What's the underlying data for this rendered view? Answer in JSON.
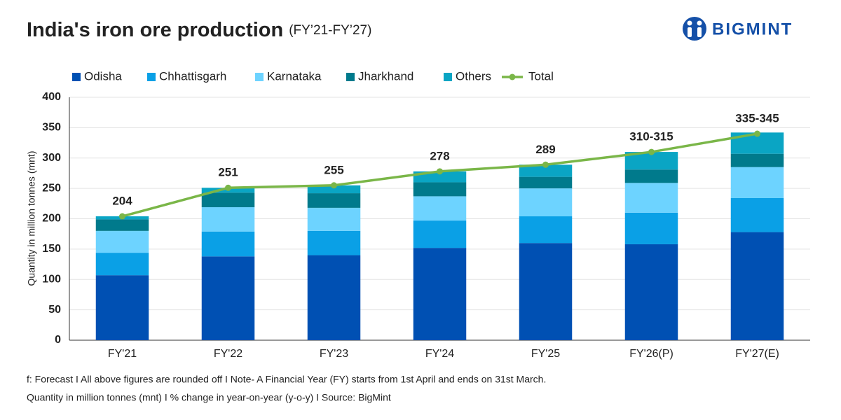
{
  "chart_data": {
    "type": "bar",
    "stacked": true,
    "title": "India's iron ore production",
    "subtitle": "(FY’21-FY’27)",
    "brand": "BIGMINT",
    "ylabel": "Quantity in million tonnes (mnt)",
    "categories": [
      "FY'21",
      "FY'22",
      "FY'23",
      "FY'24",
      "FY'25",
      "FY'26(P)",
      "FY'27(E)"
    ],
    "series": [
      {
        "name": "Odisha",
        "color": "#0050b3",
        "values": [
          107,
          138,
          140,
          152,
          160,
          158,
          178
        ]
      },
      {
        "name": "Chhattisgarh",
        "color": "#0aa0e6",
        "values": [
          37,
          41,
          40,
          45,
          44,
          52,
          56
        ]
      },
      {
        "name": "Karnataka",
        "color": "#6dd3ff",
        "values": [
          36,
          40,
          38,
          40,
          46,
          49,
          51
        ]
      },
      {
        "name": "Jharkhand",
        "color": "#007a8c",
        "values": [
          19,
          24,
          24,
          23,
          19,
          22,
          22
        ]
      },
      {
        "name": "Others",
        "color": "#0aa5c4",
        "values": [
          5,
          8,
          13,
          18,
          20,
          29,
          35
        ]
      },
      {
        "name": "Total",
        "color": "#7ab648",
        "type": "line",
        "values": [
          204,
          251,
          255,
          278,
          289,
          310,
          340
        ],
        "value_labels": [
          "204",
          "251",
          "255",
          "278",
          "289",
          "310-315",
          "335-345"
        ]
      }
    ],
    "ylim": [
      0,
      400
    ],
    "yticks": [
      0,
      50,
      100,
      150,
      200,
      250,
      300,
      350,
      400
    ],
    "grid": true,
    "legend": "top-left",
    "notes": [
      "f: Forecast  I  All above figures are rounded off  I  Note- A Financial Year (FY) starts from 1st April and ends on 31st March.",
      "Quantity in million tonnes (mnt)  I  % change in year-on-year (y-o-y)  I  Source: BigMint"
    ]
  }
}
